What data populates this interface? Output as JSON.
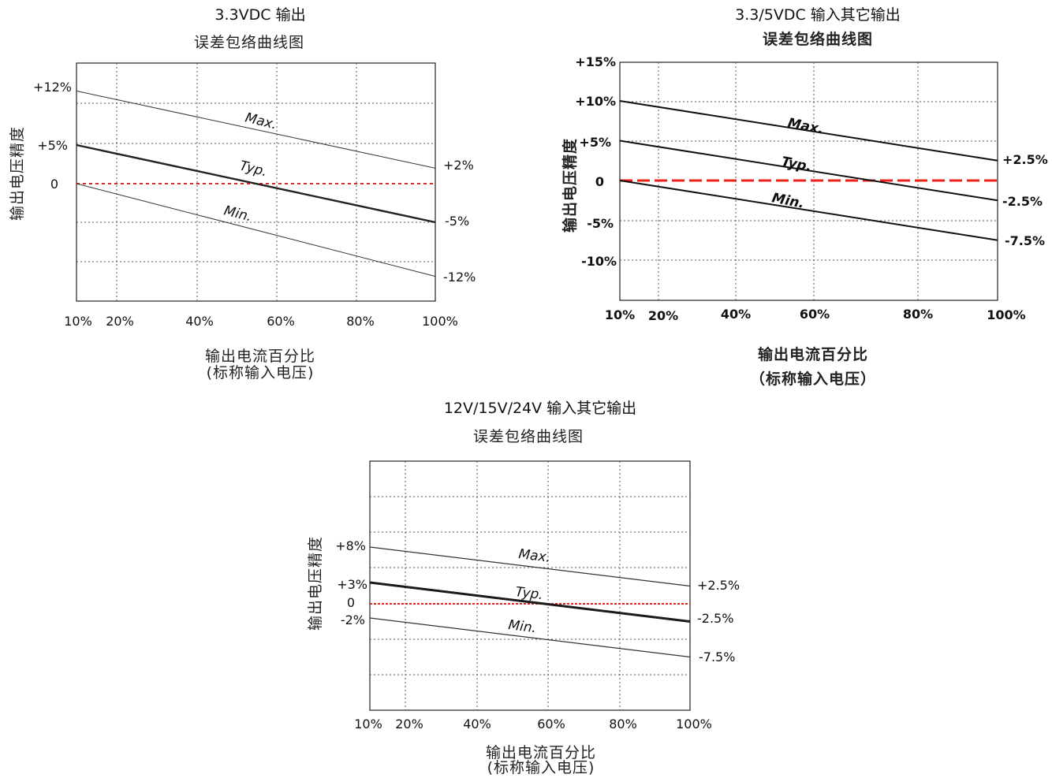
{
  "chart_data": [
    {
      "type": "line",
      "title": "3.3VDC 输出",
      "subtitle": "误差包络曲线图",
      "xlabel": "输出电流百分比",
      "xlabel_note": "(标称输入电压)",
      "ylabel": "输出电压精度",
      "x_ticks": [
        "10%",
        "20%",
        "40%",
        "60%",
        "80%",
        "100%"
      ],
      "y_ticks": [
        "+12%",
        "+5%",
        "0"
      ],
      "right_labels": [
        "+2%",
        "-5%",
        "-12%"
      ],
      "x": [
        10,
        100
      ],
      "series": [
        {
          "name": "Max.",
          "values": [
            12,
            2
          ]
        },
        {
          "name": "Typ.",
          "values": [
            5,
            -5
          ]
        },
        {
          "name": "Min.",
          "values": [
            0,
            -12
          ]
        }
      ],
      "zero_line": "red dotted",
      "grid": "dotted"
    },
    {
      "type": "line",
      "title": "3.3/5VDC 输入其它输出",
      "subtitle": "误差包络曲线图",
      "xlabel": "输出电流百分比",
      "xlabel_note": "（标称输入电压）",
      "ylabel": "输出电压精度",
      "x_ticks": [
        "10%",
        "20%",
        "40%",
        "60%",
        "80%",
        "100%"
      ],
      "y_ticks": [
        "+15%",
        "+10%",
        "+5%",
        "0",
        "-5%",
        "-10%"
      ],
      "right_labels": [
        "+2.5%",
        "-2.5%",
        "-7.5%"
      ],
      "x": [
        10,
        100
      ],
      "series": [
        {
          "name": "Max.",
          "values": [
            10,
            2.5
          ]
        },
        {
          "name": "Typ.",
          "values": [
            5,
            -2.5
          ]
        },
        {
          "name": "Min.",
          "values": [
            0,
            -7.5
          ]
        }
      ],
      "zero_line": "red dashed",
      "grid": "dotted"
    },
    {
      "type": "line",
      "title": "12V/15V/24V 输入其它输出",
      "subtitle": "误差包络曲线图",
      "xlabel": "输出电流百分比",
      "xlabel_note": "(标称输入电压)",
      "ylabel": "输出电压精度",
      "x_ticks": [
        "10%",
        "20%",
        "40%",
        "60%",
        "80%",
        "100%"
      ],
      "y_ticks": [
        "+8%",
        "+3%",
        "0",
        "-2%"
      ],
      "right_labels": [
        "+2.5%",
        "-2.5%",
        "-7.5%"
      ],
      "x": [
        10,
        100
      ],
      "series": [
        {
          "name": "Max.",
          "values": [
            8,
            2.5
          ]
        },
        {
          "name": "Typ.",
          "values": [
            3,
            -2.5
          ]
        },
        {
          "name": "Min.",
          "values": [
            -2,
            -7.5
          ]
        }
      ],
      "zero_line": "red dotted",
      "grid": "dotted"
    }
  ]
}
